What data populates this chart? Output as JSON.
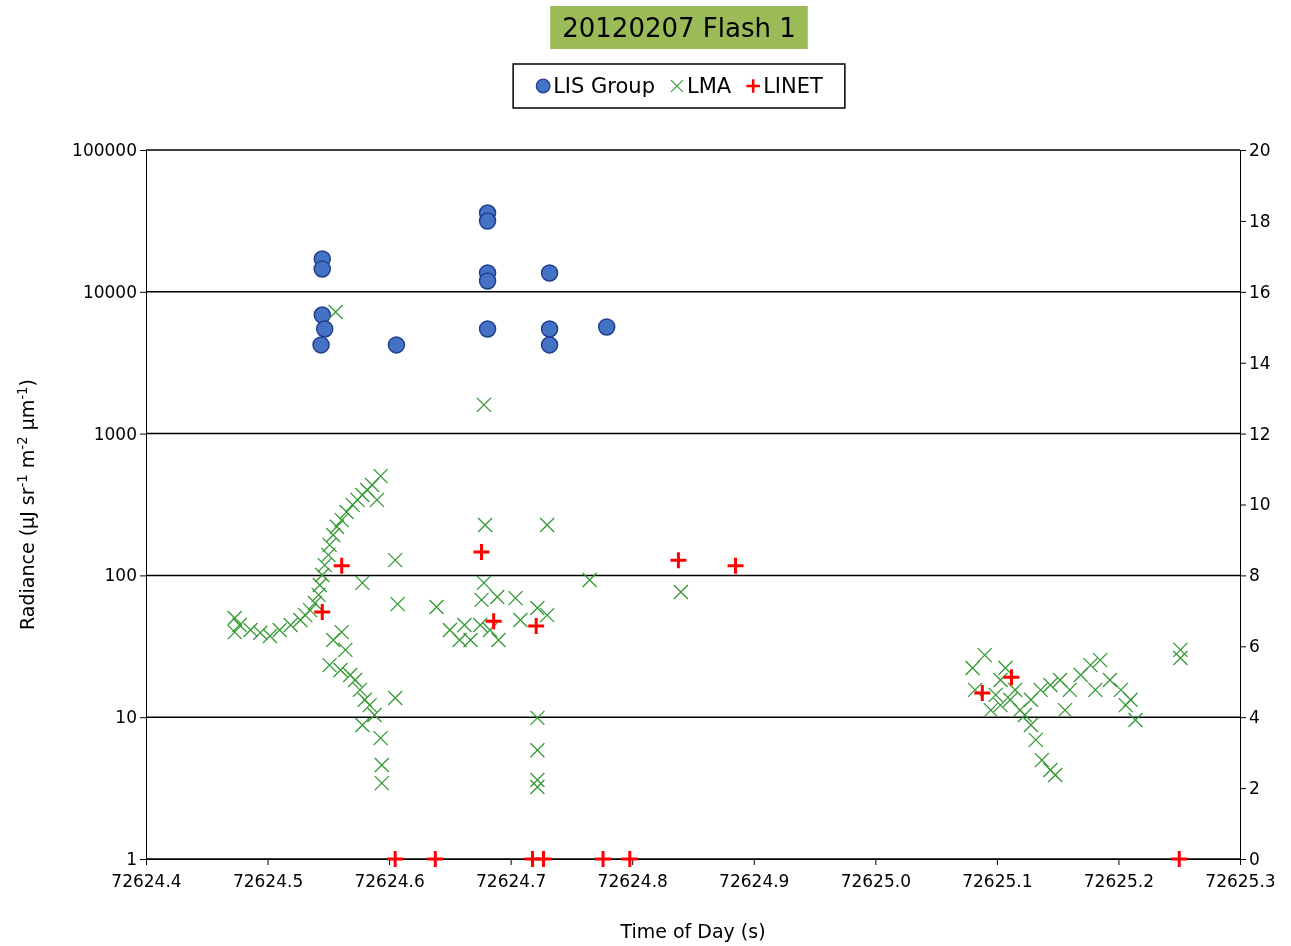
{
  "chart_data": {
    "type": "scatter",
    "title": "20120207 Flash 1",
    "xlabel": "Time of Day (s)",
    "ylabel": "Radiance (μJ sr$^{-1}$ m$^{-2}$ μm$^{-1}$)",
    "xlim": [
      72624.4,
      72625.3
    ],
    "xticks": [
      72624.4,
      72624.5,
      72624.6,
      72624.7,
      72624.8,
      72624.9,
      {
        "value": 72625,
        "label": "72625.0"
      },
      72625.1,
      72625.2,
      72625.3
    ],
    "ylim": [
      1,
      100000
    ],
    "yticks": [
      1,
      10,
      100,
      1000,
      10000,
      100000
    ],
    "log": "y",
    "y2lim": [
      0,
      20
    ],
    "y2ticks": [
      0,
      2,
      4,
      6,
      8,
      10,
      12,
      14,
      16,
      18,
      20
    ],
    "grid": "y",
    "legend": "top",
    "series": [
      {
        "name": "LIS Group",
        "color": "#4472c4",
        "marker": "circle",
        "x": [
          72624.545,
          72624.545,
          72624.545,
          72624.547,
          72624.544,
          72624.606,
          72624.681,
          72624.681,
          72624.681,
          72624.681,
          72624.681,
          72624.732,
          72624.732,
          72624.732,
          72624.779
        ],
        "values": [
          17030,
          14490,
          6860,
          5470,
          4220,
          4220,
          35950,
          31560,
          13580,
          11920,
          5470,
          13580,
          5470,
          4220,
          5650
        ]
      },
      {
        "name": "LMA",
        "color": "#339933",
        "marker": "x",
        "axis": "y2",
        "x": [
          72624.473,
          72624.473,
          72624.477,
          72624.486,
          72624.494,
          72624.502,
          72624.51,
          72624.519,
          72624.527,
          72624.531,
          72624.535,
          72624.539,
          72624.542,
          72624.543,
          72624.545,
          72624.547,
          72624.55,
          72624.551,
          72624.554,
          72624.557,
          72624.561,
          72624.565,
          72624.57,
          72624.574,
          72624.578,
          72624.582,
          72624.586,
          72624.59,
          72624.593,
          72624.605,
          72624.578,
          72624.607,
          72624.561,
          72624.554,
          72624.564,
          72624.551,
          72624.56,
          72624.568,
          72624.572,
          72624.576,
          72624.58,
          72624.584,
          72624.588,
          72624.578,
          72624.593,
          72624.594,
          72624.594,
          72624.605,
          72624.678,
          72624.679,
          72624.73,
          72624.678,
          72624.676,
          72624.689,
          72624.639,
          72624.662,
          72624.65,
          72624.658,
          72624.667,
          72624.675,
          72624.683,
          72624.69,
          72624.704,
          72624.708,
          72624.722,
          72624.73,
          72624.722,
          72624.722,
          72624.722,
          72624.722,
          72624.765,
          72624.84,
          72624.556,
          72625.08,
          72625.09,
          72625.099,
          72625.103,
          72625.107,
          72625.115,
          72625.119,
          72625.123,
          72625.128,
          72625.132,
          72625.137,
          72625.144,
          72625.148,
          72625.128,
          72625.136,
          72625.144,
          72625.152,
          72625.16,
          72625.169,
          72625.177,
          72625.185,
          72625.193,
          72625.202,
          72625.21,
          72625.214,
          72625.251,
          72625.251,
          72625.103,
          72625.082,
          72625.095,
          72625.111,
          72625.156,
          72625.181,
          72625.206
        ],
        "values": [
          6.8,
          6.4,
          6.6,
          6.46,
          6.38,
          6.29,
          6.46,
          6.6,
          6.74,
          6.88,
          7.02,
          7.22,
          7.45,
          7.73,
          8.01,
          8.29,
          8.58,
          8.86,
          9.14,
          9.37,
          9.56,
          9.79,
          9.99,
          10.13,
          10.27,
          10.41,
          10.55,
          10.13,
          10.8,
          8.43,
          7.79,
          7.19,
          6.4,
          6.18,
          5.9,
          5.47,
          5.33,
          5.19,
          5.05,
          4.77,
          4.49,
          4.34,
          4.06,
          3.78,
          3.41,
          2.65,
          2.14,
          4.54,
          12.81,
          9.42,
          9.42,
          7.79,
          7.31,
          7.39,
          7.11,
          6.6,
          6.46,
          6.18,
          6.18,
          6.6,
          6.46,
          6.18,
          7.36,
          6.74,
          7.08,
          6.88,
          3.98,
          3.07,
          2.23,
          2.03,
          7.87,
          7.53,
          15.43,
          5.39,
          5.75,
          4.63,
          4.34,
          5.39,
          4.77,
          4.2,
          4.06,
          3.78,
          3.36,
          2.79,
          2.51,
          2.37,
          4.49,
          4.77,
          4.91,
          5.05,
          4.77,
          5.19,
          5.47,
          5.61,
          5.05,
          4.77,
          4.49,
          3.92,
          5.9,
          5.67,
          5.05,
          4.77,
          4.2,
          4.49,
          4.2,
          4.77,
          4.34
        ]
      },
      {
        "name": "LINET",
        "color": "#ff0000",
        "marker": "cross",
        "axis": "y2",
        "x": [
          72624.545,
          72624.561,
          72624.676,
          72624.686,
          72624.721,
          72624.838,
          72624.885,
          72625.088,
          72625.112,
          72624.605,
          72624.638,
          72624.718,
          72624.727,
          72624.776,
          72624.798,
          72625.25
        ],
        "values": [
          6.97,
          8.27,
          8.66,
          6.71,
          6.57,
          8.43,
          8.27,
          4.68,
          5.13,
          0,
          0,
          0,
          0,
          0,
          0,
          0
        ]
      }
    ]
  }
}
